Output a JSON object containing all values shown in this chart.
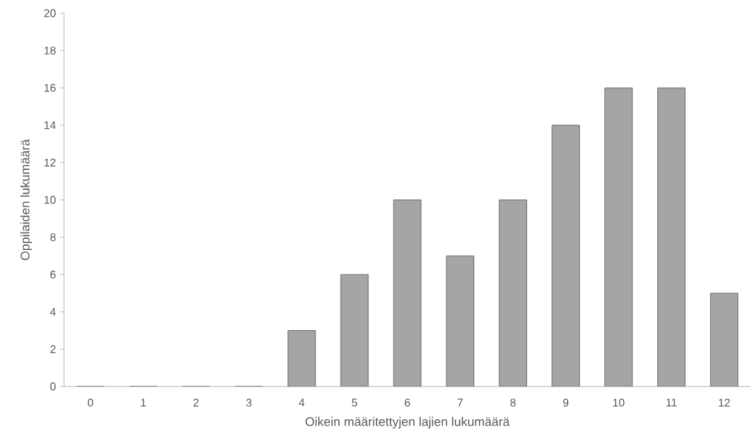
{
  "chart_data": {
    "type": "bar",
    "xlabel": "Oikein määritettyjen lajien lukumäärä",
    "ylabel": "Oppilaiden lukumäärä",
    "categories": [
      "0",
      "1",
      "2",
      "3",
      "4",
      "5",
      "6",
      "7",
      "8",
      "9",
      "10",
      "11",
      "12"
    ],
    "values": [
      0,
      0,
      0,
      0,
      3,
      6,
      10,
      7,
      10,
      14,
      16,
      16,
      5
    ],
    "color": "#a5a5a5",
    "ylim": [
      0,
      20
    ],
    "yticks": [
      0,
      2,
      4,
      6,
      8,
      10,
      12,
      14,
      16,
      18,
      20
    ],
    "grid": false
  }
}
